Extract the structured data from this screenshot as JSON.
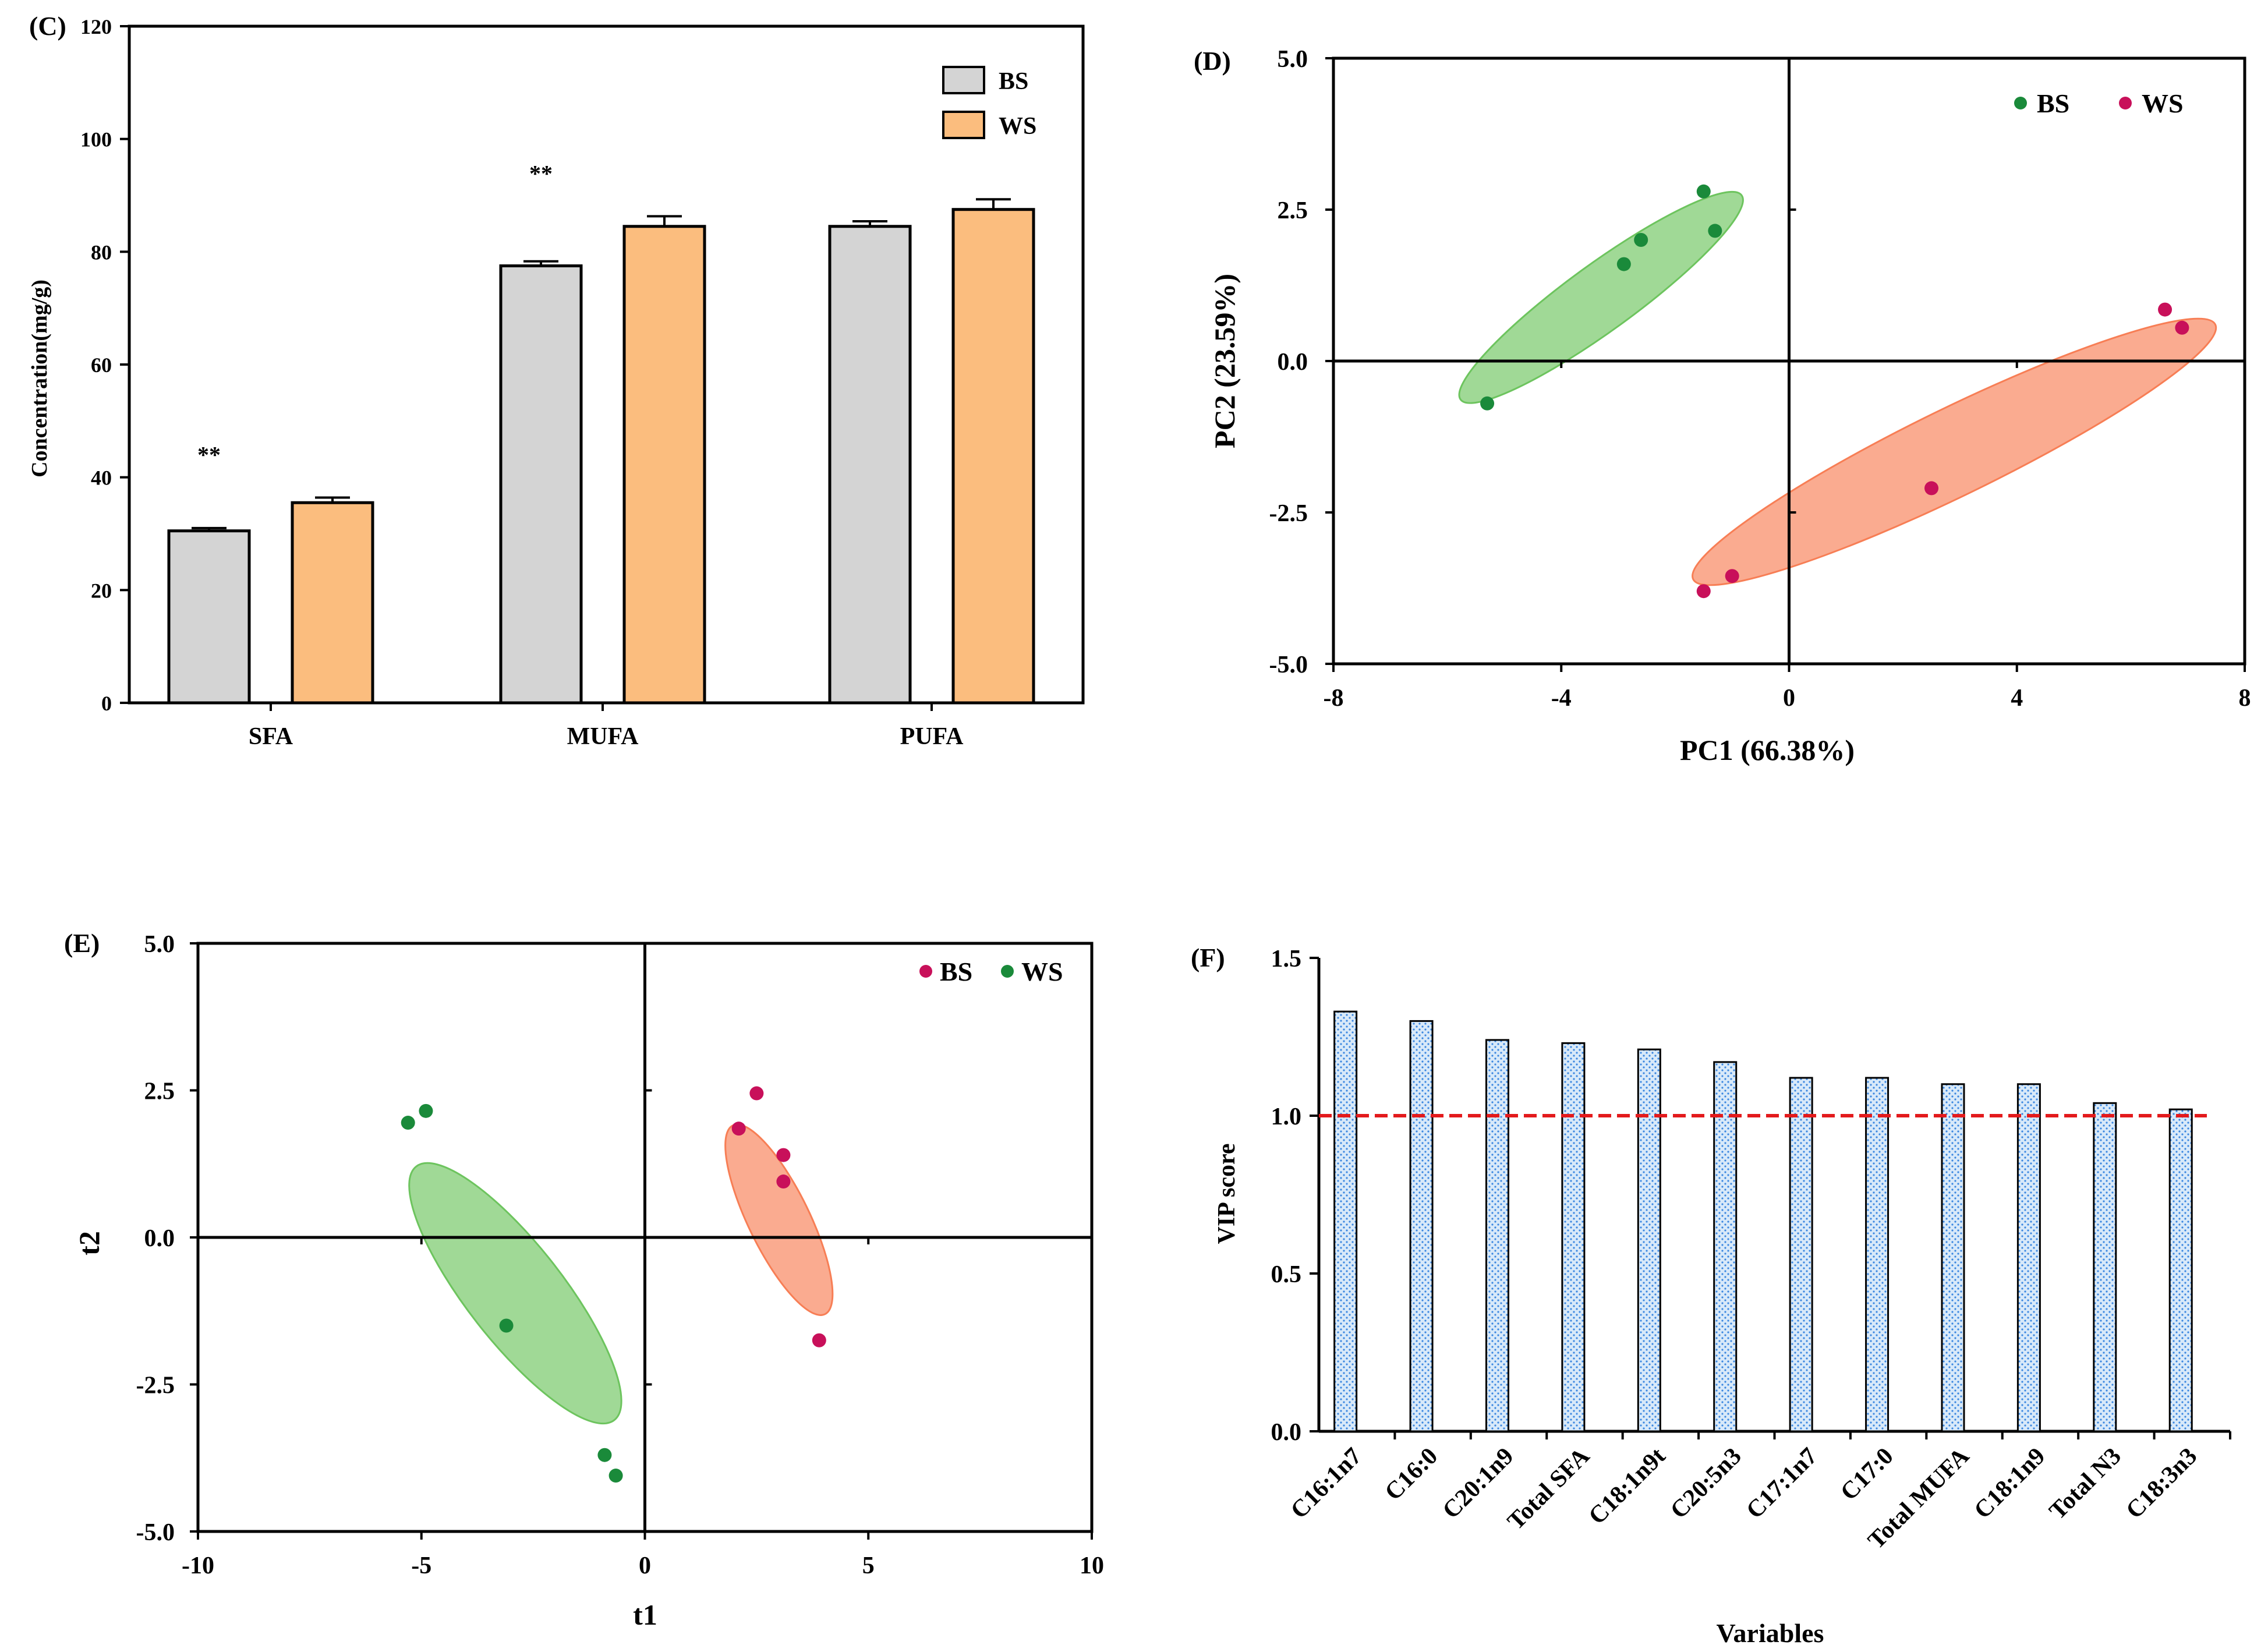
{
  "colors": {
    "bs_bar": "#d4d4d4",
    "ws_bar": "#fbbd7e",
    "green_point": "#1a8a3a",
    "magenta_point": "#c8105a",
    "green_ellipse": "#6dc45e",
    "orange_ellipse": "#f77e55",
    "vip_bar": "#cfe3f7",
    "vip_bar_stroke": "#1c6fd8",
    "threshold": "#e31a1c"
  },
  "chart_data": [
    {
      "panel": "(C)",
      "type": "bar",
      "title": "",
      "xlabel": "",
      "ylabel": "Concentration(mg/g)",
      "ylim": [
        0,
        120
      ],
      "yticks": [
        "0",
        "20",
        "40",
        "60",
        "80",
        "100",
        "120"
      ],
      "categories": [
        "SFA",
        "MUFA",
        "PUFA"
      ],
      "series": [
        {
          "name": "BS",
          "values": [
            30.5,
            77.5,
            84.5
          ],
          "errors": [
            0.5,
            0.8,
            0.9
          ]
        },
        {
          "name": "WS",
          "values": [
            35.5,
            84.5,
            87.5
          ],
          "errors": [
            0.9,
            1.8,
            1.8
          ]
        }
      ],
      "annotations": [
        "**",
        "**",
        ""
      ],
      "legend": [
        "BS",
        "WS"
      ],
      "legend_position": "top-right"
    },
    {
      "panel": "(D)",
      "type": "scatter",
      "xlabel": "PC1 (66.38%)",
      "ylabel": "PC2 (23.59%)",
      "xlim": [
        -8,
        8
      ],
      "ylim": [
        -5,
        5
      ],
      "xticks": [
        "-8",
        "-4",
        "0",
        "4",
        "8"
      ],
      "yticks": [
        "5.0",
        "2.5",
        "0.0",
        "-2.5",
        "-5.0"
      ],
      "legend": [
        "BS",
        "WS"
      ],
      "legend_position": "top-right",
      "series": [
        {
          "name": "BS",
          "color": "green",
          "points": [
            [
              -5.3,
              -0.7
            ],
            [
              -2.9,
              1.6
            ],
            [
              -2.6,
              2.0
            ],
            [
              -1.5,
              2.8
            ],
            [
              -1.3,
              2.15
            ]
          ]
        },
        {
          "name": "WS",
          "color": "magenta",
          "points": [
            [
              -1.5,
              -3.8
            ],
            [
              -1.0,
              -3.55
            ],
            [
              2.5,
              -2.1
            ],
            [
              6.6,
              0.85
            ],
            [
              6.9,
              0.55
            ]
          ]
        }
      ]
    },
    {
      "panel": "(E)",
      "type": "scatter",
      "xlabel": "t1",
      "ylabel": "t2",
      "xlim": [
        -10,
        10
      ],
      "ylim": [
        -5,
        5
      ],
      "xticks": [
        "-10",
        "-5",
        "0",
        "5",
        "10"
      ],
      "yticks": [
        "5.0",
        "2.5",
        "0.0",
        "-2.5",
        "-5.0"
      ],
      "legend": [
        "BS",
        "WS"
      ],
      "legend_position": "top-right",
      "series": [
        {
          "name": "BS",
          "color": "magenta",
          "points": [
            [
              2.1,
              1.85
            ],
            [
              2.5,
              2.45
            ],
            [
              3.1,
              1.4
            ],
            [
              3.1,
              0.95
            ],
            [
              3.9,
              -1.75
            ]
          ]
        },
        {
          "name": "WS",
          "color": "green",
          "points": [
            [
              -5.3,
              1.95
            ],
            [
              -4.9,
              2.15
            ],
            [
              -3.1,
              -1.5
            ],
            [
              -0.9,
              -3.7
            ],
            [
              -0.65,
              -4.05
            ]
          ]
        }
      ]
    },
    {
      "panel": "(F)",
      "type": "bar",
      "xlabel": "Variables",
      "ylabel": "VIP score",
      "ylim": [
        0,
        1.5
      ],
      "yticks": [
        "0.0",
        "0.5",
        "1.0",
        "1.5"
      ],
      "threshold": 1.0,
      "categories": [
        "C16:1n7",
        "C16:0",
        "C20:1n9",
        "Total SFA",
        "C18:1n9t",
        "C20:5n3",
        "C17:1n7",
        "C17:0",
        "Total MUFA",
        "C18:1n9",
        "Total N3",
        "C18:3n3"
      ],
      "values": [
        1.33,
        1.3,
        1.24,
        1.23,
        1.21,
        1.17,
        1.12,
        1.12,
        1.1,
        1.1,
        1.04,
        1.02
      ]
    }
  ]
}
